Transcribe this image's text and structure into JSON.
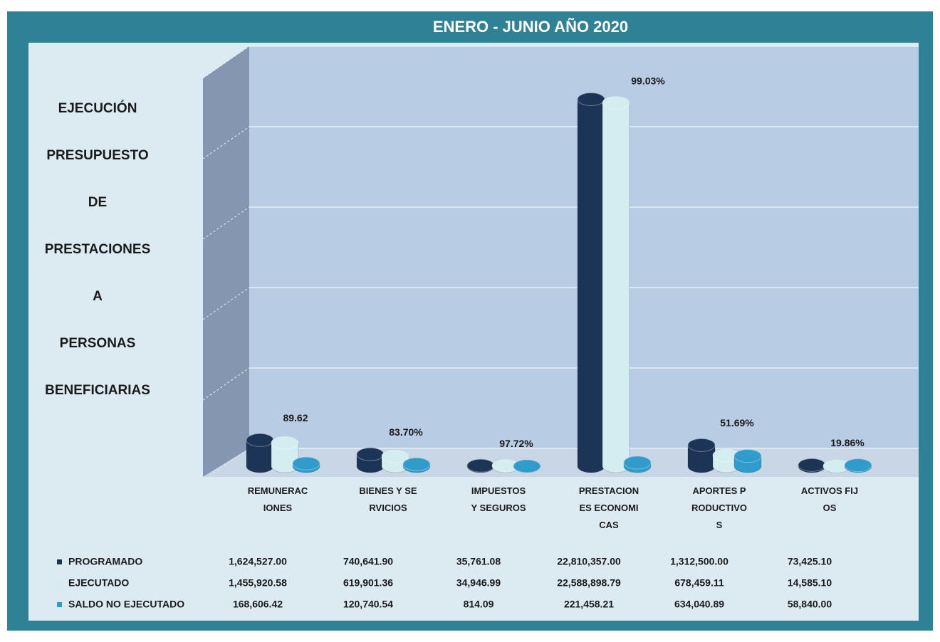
{
  "chart_data": {
    "type": "bar3d",
    "title": "ENERO - JUNIO AÑO 2020",
    "side_title": [
      "EJECUCIÓN",
      "PRESUPUESTO",
      "DE",
      "PRESTACIONES",
      "A",
      "PERSONAS",
      "BENEFICIARIAS"
    ],
    "categories": [
      "REMUNERACIONES",
      "BIENES Y SERVICIOS",
      "IMPUESTOS Y SEGUROS",
      "PRESTACIONES ECONOMICAS",
      "APORTES PRODUCTIVOS",
      "ACTIVOS FIJOS"
    ],
    "series": [
      {
        "name": "PROGRAMADO",
        "color": "#1c3557",
        "values": [
          1624527.0,
          740641.9,
          35761.08,
          22810357.0,
          1312500.0,
          73425.1
        ],
        "value_labels": [
          "1,624,527.00",
          "740,641.90",
          "35,761.08",
          "22,810,357.00",
          "1,312,500.00",
          "73,425.10"
        ]
      },
      {
        "name": "EJECUTADO",
        "color": "#d4edf1",
        "values": [
          1455920.58,
          619901.36,
          34946.99,
          22588898.79,
          678459.11,
          14585.1
        ],
        "value_labels": [
          "1,455,920.58",
          "619,901.36",
          "34,946.99",
          "22,588,898.79",
          "678,459.11",
          "14,585.10"
        ]
      },
      {
        "name": "SALDO NO EJECUTADO",
        "color": "#2f9ccb",
        "values": [
          168606.42,
          120740.54,
          814.09,
          221458.21,
          634040.89,
          58840.0
        ],
        "value_labels": [
          "168,606.42",
          "120,740.54",
          "814.09",
          "221,458.21",
          "634,040.89",
          "58,840.00"
        ]
      }
    ],
    "percent": {
      "values": [
        89.62,
        83.7,
        97.72,
        99.03,
        51.69,
        19.86
      ],
      "value_labels": [
        "89.62",
        "83.70%",
        "97.72%",
        "99.03%",
        "51.69%",
        "19.86%"
      ]
    },
    "ylim": [
      0,
      25000000
    ],
    "yticks": [
      0,
      5000000,
      10000000,
      15000000,
      20000000,
      25000000
    ],
    "grid": true
  }
}
